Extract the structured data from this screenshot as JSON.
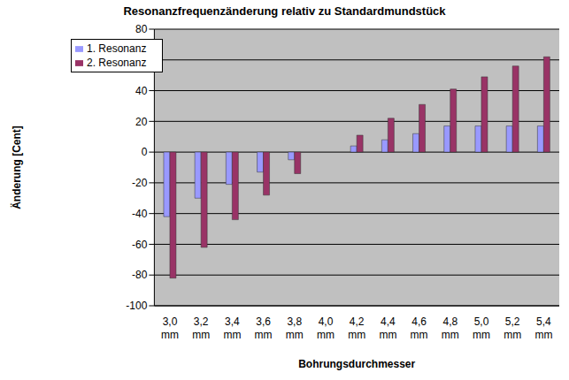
{
  "chart_data": {
    "type": "bar",
    "title": "Resonanzfrequenzänderung relativ zu Standardmundstück",
    "x_label": "Bohrungsdurchmesser",
    "y_label": "Änderung [Cent]",
    "categories": [
      "3,0 mm",
      "3,2 mm",
      "3,4 mm",
      "3,6 mm",
      "3,8 mm",
      "4,0 mm",
      "4,2 mm",
      "4,4 mm",
      "4,6 mm",
      "4,8 mm",
      "5,0 mm",
      "5,2 mm",
      "5,4 mm"
    ],
    "series": [
      {
        "name": "1. Resonanz",
        "color": "#9999ff",
        "values": [
          -42,
          -30,
          -21,
          -13,
          -5,
          0,
          4,
          8,
          12,
          17,
          17,
          17,
          17
        ]
      },
      {
        "name": "2. Resonanz",
        "color": "#993366",
        "values": [
          -82,
          -62,
          -44,
          -28,
          -14,
          0,
          11,
          22,
          31,
          41,
          49,
          56,
          62
        ]
      }
    ],
    "ylim": [
      -100,
      80
    ],
    "yticks": [
      -100,
      -80,
      -60,
      -40,
      -20,
      0,
      20,
      40,
      60,
      80
    ],
    "grid": true,
    "legend": "upper left"
  }
}
